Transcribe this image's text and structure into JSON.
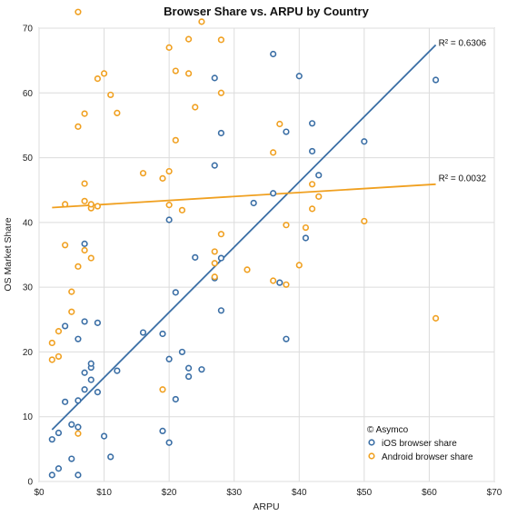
{
  "chart_data": {
    "type": "scatter",
    "title": "Browser Share vs. ARPU by Country",
    "xlabel": "ARPU",
    "ylabel": "OS Market Share",
    "xlim": [
      0,
      70
    ],
    "ylim": [
      0,
      70
    ],
    "x_ticks": [
      0,
      10,
      20,
      30,
      40,
      50,
      60,
      70
    ],
    "x_tick_labels": [
      "$0",
      "$10",
      "$20",
      "$30",
      "$40",
      "$50",
      "$60",
      "$70"
    ],
    "y_ticks": [
      0,
      10,
      20,
      30,
      40,
      50,
      60,
      70
    ],
    "y_tick_labels": [
      "0",
      "10",
      "20",
      "30",
      "40",
      "50",
      "60",
      "70"
    ],
    "grid": true,
    "legend_position": "bottom-right",
    "copyright": "© Asymco",
    "series": [
      {
        "name": "iOS browser share",
        "color": "#3a6ea5",
        "points": [
          [
            2,
            1
          ],
          [
            2,
            6.5
          ],
          [
            3,
            2
          ],
          [
            3,
            7.5
          ],
          [
            4,
            12.3
          ],
          [
            4,
            24
          ],
          [
            5,
            3.5
          ],
          [
            5,
            8.8
          ],
          [
            6,
            1
          ],
          [
            6,
            8.4
          ],
          [
            6,
            12.5
          ],
          [
            6,
            22
          ],
          [
            7,
            14.2
          ],
          [
            7,
            16.8
          ],
          [
            7,
            24.7
          ],
          [
            7,
            36.7
          ],
          [
            8,
            15.7
          ],
          [
            8,
            17.6
          ],
          [
            8,
            18.2
          ],
          [
            9,
            13.8
          ],
          [
            9,
            24.5
          ],
          [
            10,
            7
          ],
          [
            11,
            3.8
          ],
          [
            12,
            17.1
          ],
          [
            16,
            23
          ],
          [
            19,
            7.8
          ],
          [
            19,
            22.8
          ],
          [
            20,
            6
          ],
          [
            20,
            18.9
          ],
          [
            20,
            40.4
          ],
          [
            21,
            12.7
          ],
          [
            21,
            29.2
          ],
          [
            22,
            20
          ],
          [
            23,
            16.2
          ],
          [
            23,
            17.5
          ],
          [
            24,
            34.6
          ],
          [
            25,
            17.3
          ],
          [
            27,
            31.4
          ],
          [
            27,
            48.8
          ],
          [
            27,
            62.3
          ],
          [
            28,
            26.4
          ],
          [
            28,
            34.5
          ],
          [
            28,
            53.8
          ],
          [
            33,
            43
          ],
          [
            36,
            44.5
          ],
          [
            36,
            66
          ],
          [
            37,
            30.7
          ],
          [
            38,
            22
          ],
          [
            38,
            54
          ],
          [
            40,
            62.6
          ],
          [
            41,
            37.6
          ],
          [
            42,
            51
          ],
          [
            42,
            55.3
          ],
          [
            43,
            47.3
          ],
          [
            50,
            52.5
          ],
          [
            61,
            62
          ]
        ]
      },
      {
        "name": "Android browser share",
        "color": "#f0a020",
        "points": [
          [
            2,
            18.8
          ],
          [
            2,
            21.4
          ],
          [
            3,
            19.3
          ],
          [
            3,
            23.2
          ],
          [
            4,
            36.5
          ],
          [
            4,
            42.8
          ],
          [
            5,
            26.2
          ],
          [
            5,
            29.3
          ],
          [
            6,
            7.4
          ],
          [
            6,
            33.2
          ],
          [
            6,
            54.8
          ],
          [
            6,
            72.5
          ],
          [
            7,
            35.7
          ],
          [
            7,
            43.3
          ],
          [
            7,
            46
          ],
          [
            7,
            56.8
          ],
          [
            8,
            34.5
          ],
          [
            8,
            42.2
          ],
          [
            8,
            42.8
          ],
          [
            9,
            42.5
          ],
          [
            9,
            62.2
          ],
          [
            10,
            63
          ],
          [
            11,
            59.7
          ],
          [
            12,
            56.9
          ],
          [
            16,
            47.6
          ],
          [
            19,
            14.2
          ],
          [
            19,
            46.8
          ],
          [
            20,
            42.7
          ],
          [
            20,
            47.9
          ],
          [
            20,
            67
          ],
          [
            21,
            52.7
          ],
          [
            21,
            63.4
          ],
          [
            22,
            41.9
          ],
          [
            23,
            63
          ],
          [
            23,
            68.3
          ],
          [
            24,
            57.8
          ],
          [
            25,
            71
          ],
          [
            27,
            31.6
          ],
          [
            27,
            33.7
          ],
          [
            27,
            35.5
          ],
          [
            28,
            38.2
          ],
          [
            28,
            60
          ],
          [
            28,
            68.2
          ],
          [
            32,
            32.7
          ],
          [
            36,
            31
          ],
          [
            36,
            50.8
          ],
          [
            37,
            55.2
          ],
          [
            38,
            30.4
          ],
          [
            38,
            39.6
          ],
          [
            40,
            33.4
          ],
          [
            41,
            39.2
          ],
          [
            42,
            42.1
          ],
          [
            42,
            45.9
          ],
          [
            43,
            44
          ],
          [
            50,
            40.2
          ],
          [
            61,
            25.2
          ]
        ]
      }
    ],
    "trendlines": [
      {
        "series": "iOS browser share",
        "x": [
          2,
          61
        ],
        "y": [
          8,
          67.4
        ],
        "label": "R² = 0.6306",
        "label_at": [
          61,
          67.4
        ]
      },
      {
        "series": "Android browser share",
        "x": [
          2,
          61
        ],
        "y": [
          42.3,
          45.9
        ],
        "label": "R² = 0.0032",
        "label_at": [
          61,
          46.5
        ]
      }
    ]
  }
}
